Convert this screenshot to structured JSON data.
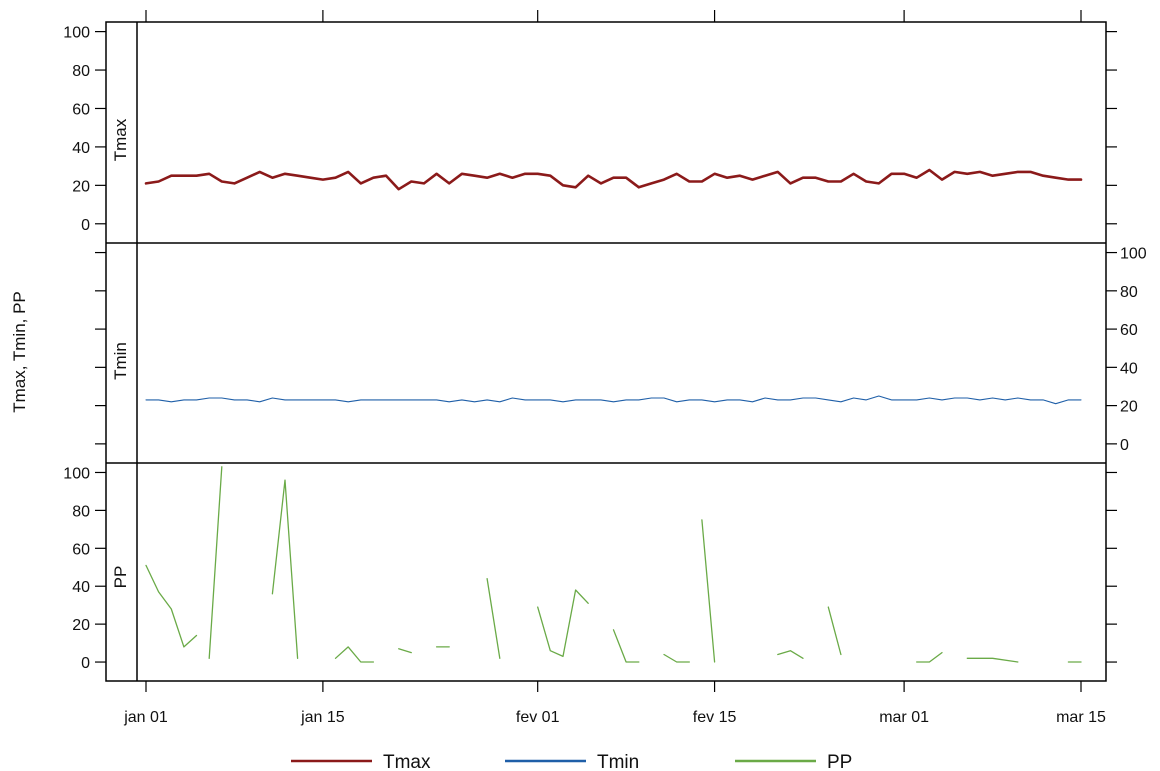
{
  "chart_data": {
    "type": "line",
    "layout": "three stacked panels sharing the x axis (lattice xyplot)",
    "ylabel": "Tmax, Tmin, PP",
    "xlabel": "",
    "x_ticks": [
      "jan 01",
      "jan 15",
      "fev 01",
      "fev 15",
      "mar 01",
      "mar 15"
    ],
    "x_tick_dates": [
      "2000-01-01",
      "2000-01-15",
      "2000-02-01",
      "2000-02-15",
      "2000-03-01",
      "2000-03-15"
    ],
    "xlim": [
      "2000-01-01",
      "2000-03-15"
    ],
    "ylim": [
      -10,
      105
    ],
    "y_ticks": [
      0,
      20,
      40,
      60,
      80,
      100
    ],
    "grid": false,
    "legend": {
      "position": "bottom",
      "entries": [
        "Tmax",
        "Tmin",
        "PP"
      ]
    },
    "series": [
      {
        "name": "Tmax",
        "color": "#8b1a1a",
        "points": [
          [
            "2000-01-01",
            21
          ],
          [
            "2000-01-02",
            22
          ],
          [
            "2000-01-03",
            25
          ],
          [
            "2000-01-04",
            25
          ],
          [
            "2000-01-05",
            25
          ],
          [
            "2000-01-06",
            26
          ],
          [
            "2000-01-07",
            22
          ],
          [
            "2000-01-08",
            21
          ],
          [
            "2000-01-09",
            24
          ],
          [
            "2000-01-10",
            27
          ],
          [
            "2000-01-11",
            24
          ],
          [
            "2000-01-12",
            26
          ],
          [
            "2000-01-13",
            25
          ],
          [
            "2000-01-14",
            24
          ],
          [
            "2000-01-15",
            23
          ],
          [
            "2000-01-16",
            24
          ],
          [
            "2000-01-17",
            27
          ],
          [
            "2000-01-18",
            21
          ],
          [
            "2000-01-19",
            24
          ],
          [
            "2000-01-20",
            25
          ],
          [
            "2000-01-21",
            18
          ],
          [
            "2000-01-22",
            22
          ],
          [
            "2000-01-23",
            21
          ],
          [
            "2000-01-24",
            26
          ],
          [
            "2000-01-25",
            21
          ],
          [
            "2000-01-26",
            26
          ],
          [
            "2000-01-27",
            25
          ],
          [
            "2000-01-28",
            24
          ],
          [
            "2000-01-29",
            26
          ],
          [
            "2000-01-30",
            24
          ],
          [
            "2000-01-31",
            26
          ],
          [
            "2000-02-01",
            26
          ],
          [
            "2000-02-02",
            25
          ],
          [
            "2000-02-03",
            20
          ],
          [
            "2000-02-04",
            19
          ],
          [
            "2000-02-05",
            25
          ],
          [
            "2000-02-06",
            21
          ],
          [
            "2000-02-07",
            24
          ],
          [
            "2000-02-08",
            24
          ],
          [
            "2000-02-09",
            19
          ],
          [
            "2000-02-10",
            21
          ],
          [
            "2000-02-11",
            23
          ],
          [
            "2000-02-12",
            26
          ],
          [
            "2000-02-13",
            22
          ],
          [
            "2000-02-14",
            22
          ],
          [
            "2000-02-15",
            26
          ],
          [
            "2000-02-16",
            24
          ],
          [
            "2000-02-17",
            25
          ],
          [
            "2000-02-18",
            23
          ],
          [
            "2000-02-19",
            25
          ],
          [
            "2000-02-20",
            27
          ],
          [
            "2000-02-21",
            21
          ],
          [
            "2000-02-22",
            24
          ],
          [
            "2000-02-23",
            24
          ],
          [
            "2000-02-24",
            22
          ],
          [
            "2000-02-25",
            22
          ],
          [
            "2000-02-26",
            26
          ],
          [
            "2000-02-27",
            22
          ],
          [
            "2000-02-28",
            21
          ],
          [
            "2000-02-29",
            26
          ],
          [
            "2000-03-01",
            26
          ],
          [
            "2000-03-02",
            24
          ],
          [
            "2000-03-03",
            28
          ],
          [
            "2000-03-04",
            23
          ],
          [
            "2000-03-05",
            27
          ],
          [
            "2000-03-06",
            26
          ],
          [
            "2000-03-07",
            27
          ],
          [
            "2000-03-08",
            25
          ],
          [
            "2000-03-09",
            26
          ],
          [
            "2000-03-10",
            27
          ],
          [
            "2000-03-11",
            27
          ],
          [
            "2000-03-12",
            25
          ],
          [
            "2000-03-13",
            24
          ],
          [
            "2000-03-14",
            23
          ],
          [
            "2000-03-15",
            23
          ]
        ]
      },
      {
        "name": "Tmin",
        "color": "#1f5fa8",
        "points": [
          [
            "2000-01-01",
            23
          ],
          [
            "2000-01-02",
            23
          ],
          [
            "2000-01-03",
            22
          ],
          [
            "2000-01-04",
            23
          ],
          [
            "2000-01-05",
            23
          ],
          [
            "2000-01-06",
            24
          ],
          [
            "2000-01-07",
            24
          ],
          [
            "2000-01-08",
            23
          ],
          [
            "2000-01-09",
            23
          ],
          [
            "2000-01-10",
            22
          ],
          [
            "2000-01-11",
            24
          ],
          [
            "2000-01-12",
            23
          ],
          [
            "2000-01-13",
            23
          ],
          [
            "2000-01-14",
            23
          ],
          [
            "2000-01-15",
            23
          ],
          [
            "2000-01-16",
            23
          ],
          [
            "2000-01-17",
            22
          ],
          [
            "2000-01-18",
            23
          ],
          [
            "2000-01-19",
            23
          ],
          [
            "2000-01-20",
            23
          ],
          [
            "2000-01-21",
            23
          ],
          [
            "2000-01-22",
            23
          ],
          [
            "2000-01-23",
            23
          ],
          [
            "2000-01-24",
            23
          ],
          [
            "2000-01-25",
            22
          ],
          [
            "2000-01-26",
            23
          ],
          [
            "2000-01-27",
            22
          ],
          [
            "2000-01-28",
            23
          ],
          [
            "2000-01-29",
            22
          ],
          [
            "2000-01-30",
            24
          ],
          [
            "2000-01-31",
            23
          ],
          [
            "2000-02-01",
            23
          ],
          [
            "2000-02-02",
            23
          ],
          [
            "2000-02-03",
            22
          ],
          [
            "2000-02-04",
            23
          ],
          [
            "2000-02-05",
            23
          ],
          [
            "2000-02-06",
            23
          ],
          [
            "2000-02-07",
            22
          ],
          [
            "2000-02-08",
            23
          ],
          [
            "2000-02-09",
            23
          ],
          [
            "2000-02-10",
            24
          ],
          [
            "2000-02-11",
            24
          ],
          [
            "2000-02-12",
            22
          ],
          [
            "2000-02-13",
            23
          ],
          [
            "2000-02-14",
            23
          ],
          [
            "2000-02-15",
            22
          ],
          [
            "2000-02-16",
            23
          ],
          [
            "2000-02-17",
            23
          ],
          [
            "2000-02-18",
            22
          ],
          [
            "2000-02-19",
            24
          ],
          [
            "2000-02-20",
            23
          ],
          [
            "2000-02-21",
            23
          ],
          [
            "2000-02-22",
            24
          ],
          [
            "2000-02-23",
            24
          ],
          [
            "2000-02-24",
            23
          ],
          [
            "2000-02-25",
            22
          ],
          [
            "2000-02-26",
            24
          ],
          [
            "2000-02-27",
            23
          ],
          [
            "2000-02-28",
            25
          ],
          [
            "2000-02-29",
            23
          ],
          [
            "2000-03-01",
            23
          ],
          [
            "2000-03-02",
            23
          ],
          [
            "2000-03-03",
            24
          ],
          [
            "2000-03-04",
            23
          ],
          [
            "2000-03-05",
            24
          ],
          [
            "2000-03-06",
            24
          ],
          [
            "2000-03-07",
            23
          ],
          [
            "2000-03-08",
            24
          ],
          [
            "2000-03-09",
            23
          ],
          [
            "2000-03-10",
            24
          ],
          [
            "2000-03-11",
            23
          ],
          [
            "2000-03-12",
            23
          ],
          [
            "2000-03-13",
            21
          ],
          [
            "2000-03-14",
            23
          ],
          [
            "2000-03-15",
            23
          ]
        ]
      },
      {
        "name": "PP",
        "color": "#6aaa47",
        "segments": [
          [
            [
              "2000-01-01",
              51
            ],
            [
              "2000-01-02",
              37
            ],
            [
              "2000-01-03",
              28
            ],
            [
              "2000-01-04",
              8
            ],
            [
              "2000-01-05",
              14
            ]
          ],
          [
            [
              "2000-01-06",
              2
            ],
            [
              "2000-01-07",
              103
            ]
          ],
          [
            [
              "2000-01-11",
              36
            ],
            [
              "2000-01-12",
              96
            ],
            [
              "2000-01-13",
              2
            ]
          ],
          [
            [
              "2000-01-16",
              2
            ],
            [
              "2000-01-17",
              8
            ],
            [
              "2000-01-18",
              0
            ],
            [
              "2000-01-19",
              0
            ]
          ],
          [
            [
              "2000-01-21",
              7
            ],
            [
              "2000-01-22",
              5
            ]
          ],
          [
            [
              "2000-01-24",
              8
            ],
            [
              "2000-01-25",
              8
            ]
          ],
          [
            [
              "2000-01-28",
              44
            ],
            [
              "2000-01-29",
              2
            ]
          ],
          [
            [
              "2000-02-01",
              29
            ],
            [
              "2000-02-02",
              6
            ],
            [
              "2000-02-03",
              3
            ],
            [
              "2000-02-04",
              38
            ],
            [
              "2000-02-05",
              31
            ]
          ],
          [
            [
              "2000-02-07",
              17
            ],
            [
              "2000-02-08",
              0
            ],
            [
              "2000-02-09",
              0
            ]
          ],
          [
            [
              "2000-02-11",
              4
            ],
            [
              "2000-02-12",
              0
            ],
            [
              "2000-02-13",
              0
            ]
          ],
          [
            [
              "2000-02-14",
              75
            ],
            [
              "2000-02-15",
              0
            ]
          ],
          [
            [
              "2000-02-20",
              4
            ],
            [
              "2000-02-21",
              6
            ],
            [
              "2000-02-22",
              2
            ]
          ],
          [
            [
              "2000-02-24",
              29
            ],
            [
              "2000-02-25",
              4
            ]
          ],
          [
            [
              "2000-03-02",
              0
            ],
            [
              "2000-03-03",
              0
            ],
            [
              "2000-03-04",
              5
            ]
          ],
          [
            [
              "2000-03-06",
              2
            ],
            [
              "2000-03-08",
              2
            ],
            [
              "2000-03-10",
              0
            ]
          ],
          [
            [
              "2000-03-14",
              0
            ],
            [
              "2000-03-15",
              0
            ]
          ]
        ]
      }
    ]
  }
}
